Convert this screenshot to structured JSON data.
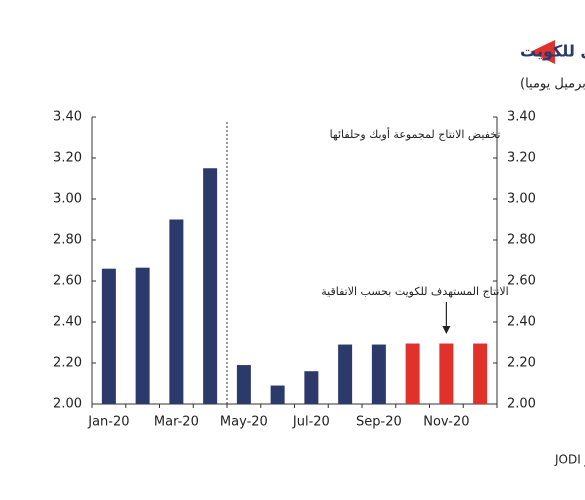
{
  "chart_data": {
    "type": "bar",
    "title": "الإنتاج النفطي للكويت",
    "subtitle": "(مليون برميل يوميا)",
    "annotations": [
      "تخفيض الانتاج لمجموعة أوبك وحلفائها",
      "الانتاج المستهدف للكويت بحسب الاتفاقية"
    ],
    "source": "المصدر :منظمة الدول المصدرة للنفط و JODI",
    "categories": [
      "Jan-20",
      null,
      "Mar-20",
      null,
      "May-20",
      null,
      "Jul-20",
      null,
      "Sep-20",
      null,
      "Nov-20",
      null
    ],
    "values": [
      2.66,
      2.665,
      2.9,
      3.15,
      2.19,
      2.09,
      2.16,
      2.29,
      2.29,
      2.295,
      2.295,
      2.295
    ],
    "colors": [
      "#2b3a6b",
      "#2b3a6b",
      "#2b3a6b",
      "#2b3a6b",
      "#2b3a6b",
      "#2b3a6b",
      "#2b3a6b",
      "#2b3a6b",
      "#2b3a6b",
      "#e0312a",
      "#e0312a",
      "#e0312a"
    ],
    "ylim": [
      2.0,
      3.4
    ],
    "yticks": [
      {
        "value": 2.0,
        "label": "2.00"
      },
      {
        "value": 2.2,
        "label": "2.20"
      },
      {
        "value": 2.4,
        "label": "2.40"
      },
      {
        "value": 2.6,
        "label": "2.60"
      },
      {
        "value": 2.8,
        "label": "2.80"
      },
      {
        "value": 3.0,
        "label": "3.00"
      },
      {
        "value": 3.2,
        "label": "3.20"
      },
      {
        "value": 3.4,
        "label": "3.40"
      }
    ]
  }
}
